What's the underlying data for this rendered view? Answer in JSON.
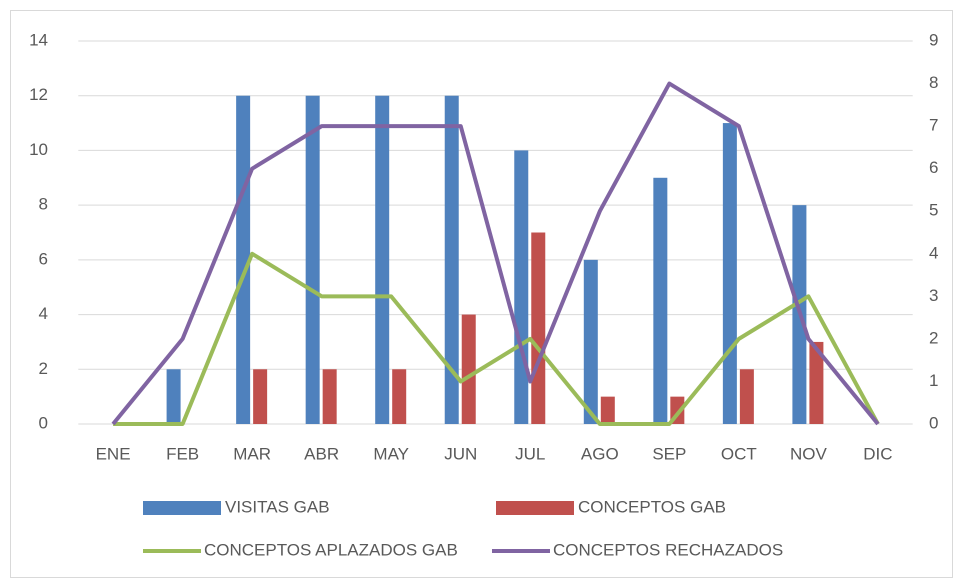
{
  "chart_data": {
    "type": "bar-line",
    "categories": [
      "ENE",
      "FEB",
      "MAR",
      "ABR",
      "MAY",
      "JUN",
      "JUL",
      "AGO",
      "SEP",
      "OCT",
      "NOV",
      "DIC"
    ],
    "series": [
      {
        "name": "VISITAS GAB",
        "type": "bar",
        "color": "#4f81bd",
        "values": [
          0,
          2,
          12,
          12,
          12,
          12,
          10,
          6,
          9,
          11,
          8,
          0
        ]
      },
      {
        "name": "CONCEPTOS GAB",
        "type": "bar",
        "color": "#c0504d",
        "values": [
          0,
          0,
          2,
          2,
          2,
          4,
          7,
          1,
          1,
          2,
          3,
          0
        ]
      },
      {
        "name": "CONCEPTOS APLAZADOS GAB",
        "type": "line",
        "axis": "y2",
        "color": "#9bbb59",
        "values": [
          0,
          0,
          4,
          3,
          3,
          1,
          2,
          0,
          0,
          2,
          3,
          0
        ]
      },
      {
        "name": "CONCEPTOS RECHAZADOS",
        "type": "line",
        "axis": "y2",
        "color": "#8064a2",
        "values": [
          0,
          2,
          6,
          7,
          7,
          7,
          1,
          5,
          8,
          7,
          2,
          0
        ]
      }
    ],
    "ylim": [
      0,
      14
    ],
    "yticks": [
      0,
      2,
      4,
      6,
      8,
      10,
      12,
      14
    ],
    "y2lim": [
      0,
      9
    ],
    "y2ticks": [
      0,
      1,
      2,
      3,
      4,
      5,
      6,
      7,
      8,
      9
    ],
    "grid": true,
    "legend": "bottom"
  }
}
